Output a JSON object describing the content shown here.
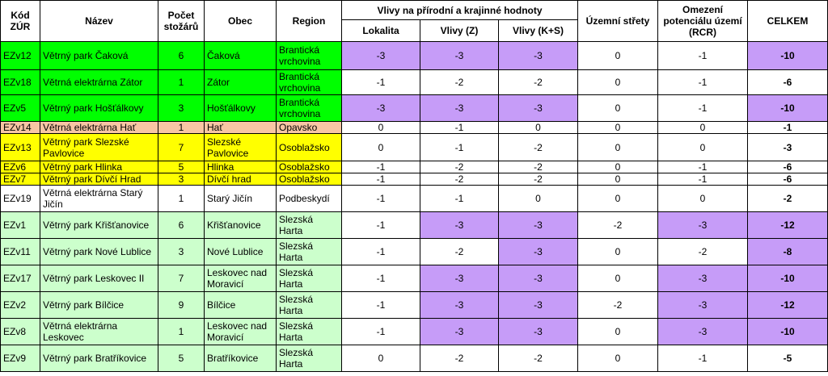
{
  "headers": {
    "kod": "Kód ZÚR",
    "nazev": "Název",
    "pocet": "Počet stožárů",
    "obec": "Obec",
    "region": "Region",
    "vlivy_group": "Vlivy na přírodní a krajinné hodnoty",
    "lokalita": "Lokalita",
    "vlivy_z": "Vlivy (Z)",
    "vlivy_ks": "Vlivy (K+S)",
    "uzemni": "Územní střety",
    "omezeni": "Omezení potenciálu území (RCR)",
    "celkem": "CELKEM"
  },
  "colors": {
    "green": "#00ff00",
    "salmon": "#f8c6a4",
    "yellow": "#ffff00",
    "white": "#ffffff",
    "lightgreen": "#ccffcc",
    "purple": "#c69cf8"
  },
  "rows": [
    {
      "kod": "EZv12",
      "nazev": "Větrný park Čaková",
      "pocet": "6",
      "obec": "Čaková",
      "region": "Brantická vrchovina",
      "lokalita": "-3",
      "vlivy_z": "-3",
      "vlivy_ks": "-3",
      "uzemni": "0",
      "omezeni": "-1",
      "celkem": "-10",
      "bg": "green",
      "hl": [
        1,
        1,
        1,
        0,
        0,
        1
      ]
    },
    {
      "kod": "EZv18",
      "nazev": "Větrná elektrárna Zátor",
      "pocet": "1",
      "obec": "Zátor",
      "region": "Brantická vrchovina",
      "lokalita": "-1",
      "vlivy_z": "-2",
      "vlivy_ks": "-2",
      "uzemni": "0",
      "omezeni": "-1",
      "celkem": "-6",
      "bg": "green",
      "hl": [
        0,
        0,
        0,
        0,
        0,
        0
      ]
    },
    {
      "kod": "EZv5",
      "nazev": "Větrný park Hošťálkovy",
      "pocet": "3",
      "obec": "Hošťálkovy",
      "region": "Brantická vrchovina",
      "lokalita": "-3",
      "vlivy_z": "-3",
      "vlivy_ks": "-3",
      "uzemni": "0",
      "omezeni": "-1",
      "celkem": "-10",
      "bg": "green",
      "hl": [
        1,
        1,
        1,
        0,
        0,
        1
      ]
    },
    {
      "kod": "EZv14",
      "nazev": "Větrná elektrárna Hať",
      "pocet": "1",
      "obec": "Hať",
      "region": "Opavsko",
      "lokalita": "0",
      "vlivy_z": "-1",
      "vlivy_ks": "0",
      "uzemni": "0",
      "omezeni": "0",
      "celkem": "-1",
      "bg": "salmon",
      "hl": [
        0,
        0,
        0,
        0,
        0,
        0
      ]
    },
    {
      "kod": "EZv13",
      "nazev": "Větrný park Slezské Pavlovice",
      "pocet": "7",
      "obec": "Slezské Pavlovice",
      "region": "Osoblažsko",
      "lokalita": "0",
      "vlivy_z": "-1",
      "vlivy_ks": "-2",
      "uzemni": "0",
      "omezeni": "0",
      "celkem": "-3",
      "bg": "yellow",
      "hl": [
        0,
        0,
        0,
        0,
        0,
        0
      ]
    },
    {
      "kod": "EZv6",
      "nazev": "Větrný park Hlinka",
      "pocet": "5",
      "obec": "Hlinka",
      "region": "Osoblažsko",
      "lokalita": "-1",
      "vlivy_z": "-2",
      "vlivy_ks": "-2",
      "uzemni": "0",
      "omezeni": "-1",
      "celkem": "-6",
      "bg": "yellow",
      "hl": [
        0,
        0,
        0,
        0,
        0,
        0
      ]
    },
    {
      "kod": "EZv7",
      "nazev": "Větrný park Dívčí Hrad",
      "pocet": "3",
      "obec": "Dívčí hrad",
      "region": "Osoblažsko",
      "lokalita": "-1",
      "vlivy_z": "-2",
      "vlivy_ks": "-2",
      "uzemni": "0",
      "omezeni": "-1",
      "celkem": "-6",
      "bg": "yellow",
      "hl": [
        0,
        0,
        0,
        0,
        0,
        0
      ]
    },
    {
      "kod": "EZv19",
      "nazev": "Větrná elektrárna Starý Jičín",
      "pocet": "1",
      "obec": "Starý Jičín",
      "region": "Podbeskydí",
      "lokalita": "-1",
      "vlivy_z": "-1",
      "vlivy_ks": "0",
      "uzemni": "0",
      "omezeni": "0",
      "celkem": "-2",
      "bg": "white",
      "hl": [
        0,
        0,
        0,
        0,
        0,
        0
      ]
    },
    {
      "kod": "EZv1",
      "nazev": "Větrný park Křišťanovice",
      "pocet": "6",
      "obec": "Křišťanovice",
      "region": "Slezská Harta",
      "lokalita": "-1",
      "vlivy_z": "-3",
      "vlivy_ks": "-3",
      "uzemni": "-2",
      "omezeni": "-3",
      "celkem": "-12",
      "bg": "lightgreen",
      "hl": [
        0,
        1,
        1,
        0,
        1,
        1
      ]
    },
    {
      "kod": "EZv11",
      "nazev": "Větrný park Nové Lublice",
      "pocet": "3",
      "obec": "Nové Lublice",
      "region": "Slezská Harta",
      "lokalita": "-1",
      "vlivy_z": "-2",
      "vlivy_ks": "-3",
      "uzemni": "0",
      "omezeni": "-2",
      "celkem": "-8",
      "bg": "lightgreen",
      "hl": [
        0,
        0,
        1,
        0,
        0,
        1
      ]
    },
    {
      "kod": "EZv17",
      "nazev": "Větrný park Leskovec II",
      "pocet": "7",
      "obec": "Leskovec nad Moravicí",
      "region": "Slezská Harta",
      "lokalita": "-1",
      "vlivy_z": "-3",
      "vlivy_ks": "-3",
      "uzemni": "0",
      "omezeni": "-3",
      "celkem": "-10",
      "bg": "lightgreen",
      "hl": [
        0,
        1,
        1,
        0,
        1,
        1
      ]
    },
    {
      "kod": "EZv2",
      "nazev": "Větrný park Bílčice",
      "pocet": "9",
      "obec": "Bílčice",
      "region": "Slezská Harta",
      "lokalita": "-1",
      "vlivy_z": "-3",
      "vlivy_ks": "-3",
      "uzemni": "-2",
      "omezeni": "-3",
      "celkem": "-12",
      "bg": "lightgreen",
      "hl": [
        0,
        1,
        1,
        0,
        1,
        1
      ]
    },
    {
      "kod": "EZv8",
      "nazev": "Větrná elektrárna Leskovec",
      "pocet": "1",
      "obec": "Leskovec nad Moravicí",
      "region": "Slezská Harta",
      "lokalita": "-1",
      "vlivy_z": "-3",
      "vlivy_ks": "-3",
      "uzemni": "0",
      "omezeni": "-3",
      "celkem": "-10",
      "bg": "lightgreen",
      "hl": [
        0,
        1,
        1,
        0,
        1,
        1
      ]
    },
    {
      "kod": "EZv9",
      "nazev": "Větrný park Bratříkovice",
      "pocet": "5",
      "obec": "Bratříkovice",
      "region": "Slezská Harta",
      "lokalita": "0",
      "vlivy_z": "-2",
      "vlivy_ks": "-2",
      "uzemni": "0",
      "omezeni": "-1",
      "celkem": "-5",
      "bg": "lightgreen",
      "hl": [
        0,
        0,
        0,
        0,
        0,
        0
      ]
    }
  ]
}
